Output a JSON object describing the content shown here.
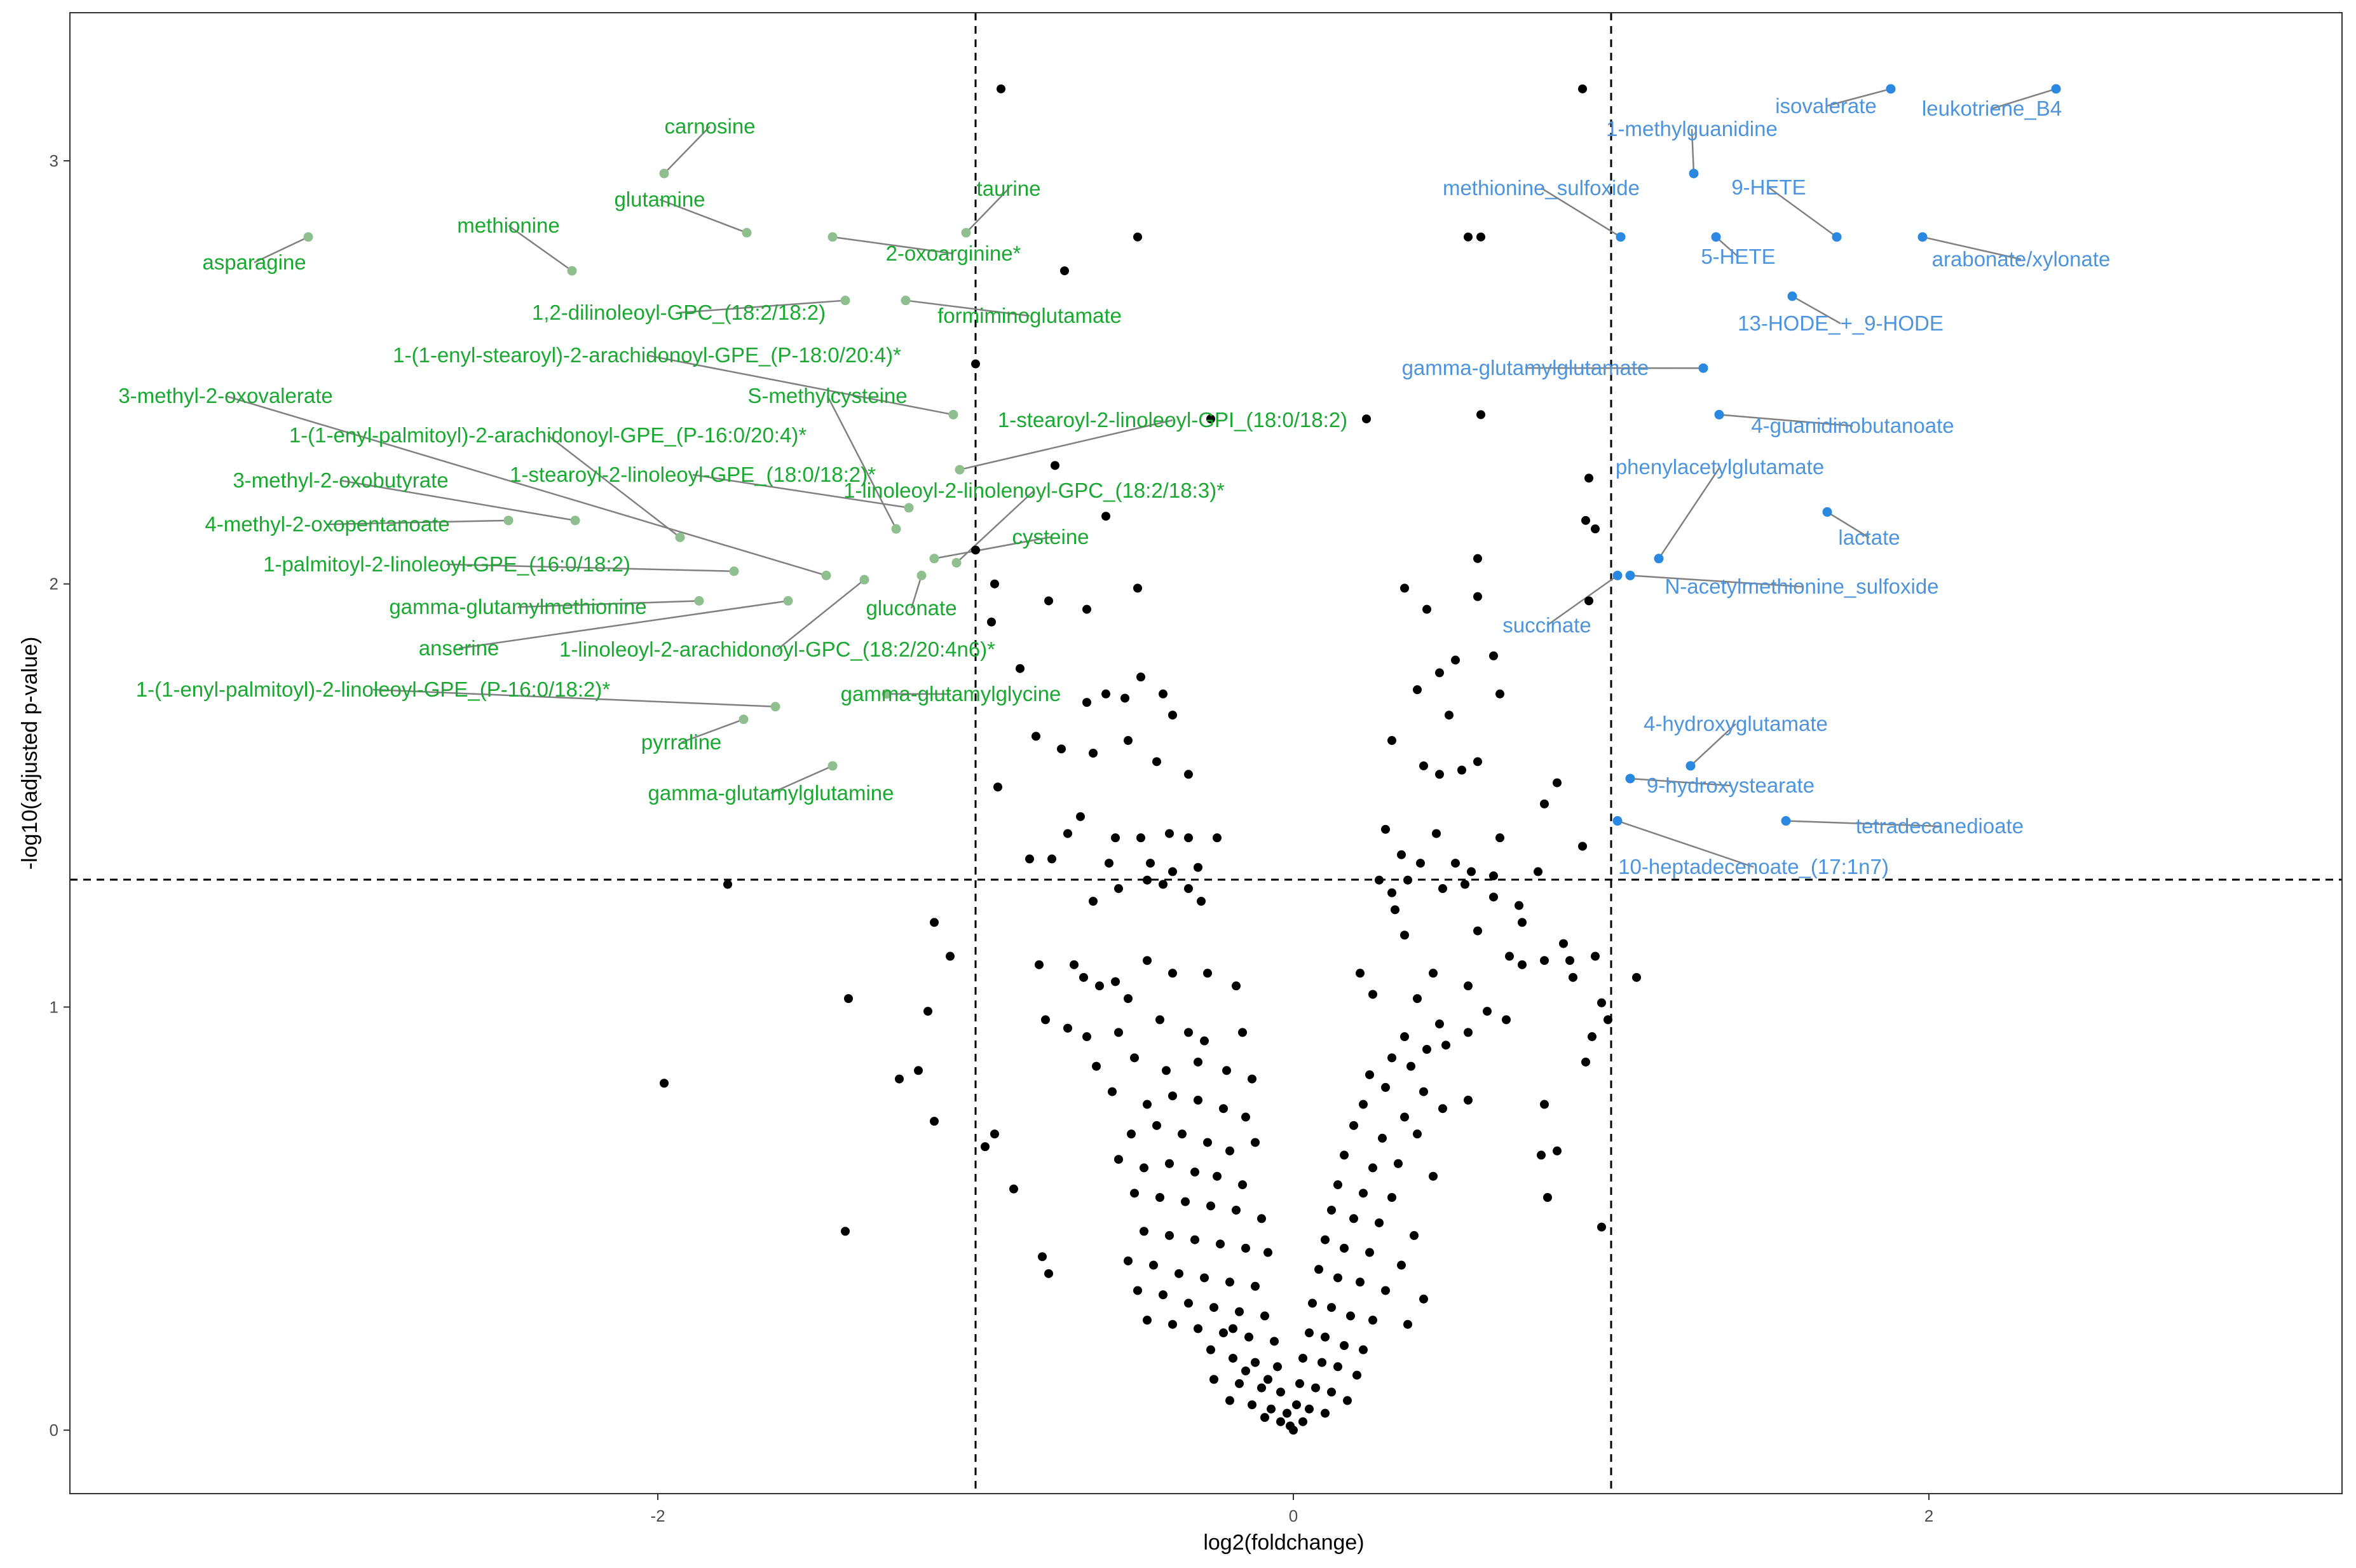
{
  "chart_data": {
    "type": "scatter",
    "xlabel": "log2(foldchange)",
    "ylabel": "-log10(adjusted p-value)",
    "xlim": [
      -3.85,
      3.3
    ],
    "ylim": [
      -0.15,
      3.35
    ],
    "x_ticks": [
      -2,
      0,
      2
    ],
    "y_ticks": [
      0,
      1,
      2,
      3
    ],
    "x_tick_labels": [
      "-2",
      "0",
      "2"
    ],
    "y_tick_labels": [
      "0",
      "1",
      "2",
      "3"
    ],
    "grid": false,
    "thresholds": {
      "x": [
        -1,
        1
      ],
      "y": 1.301
    },
    "colors": {
      "down": "#1aa832",
      "down_point": "#8fbf8f",
      "up": "#4d94dd",
      "up_point": "#2b88e0",
      "ns": "#000000"
    },
    "labeled_points": [
      {
        "name": "asparagine",
        "x": -3.1,
        "y": 2.82,
        "group": "down"
      },
      {
        "name": "carnosine",
        "x": -1.98,
        "y": 2.97,
        "group": "down"
      },
      {
        "name": "methionine",
        "x": -2.27,
        "y": 2.74,
        "group": "down"
      },
      {
        "name": "glutamine",
        "x": -1.72,
        "y": 2.83,
        "group": "down"
      },
      {
        "name": "taurine",
        "x": -1.03,
        "y": 2.83,
        "group": "down"
      },
      {
        "name": "2-oxoarginine*",
        "x": -1.45,
        "y": 2.82,
        "group": "down"
      },
      {
        "name": "1,2-dilinoleoyl-GPC_(18:2/18:2)",
        "x": -1.41,
        "y": 2.67,
        "group": "down"
      },
      {
        "name": "formiminoglutamate",
        "x": -1.22,
        "y": 2.67,
        "group": "down"
      },
      {
        "name": "1-(1-enyl-stearoyl)-2-arachidonoyl-GPE_(P-18:0/20:4)*",
        "x": -1.07,
        "y": 2.4,
        "group": "down"
      },
      {
        "name": "S-methylcysteine",
        "x": -1.25,
        "y": 2.13,
        "group": "down"
      },
      {
        "name": "3-methyl-2-oxovalerate",
        "x": -1.47,
        "y": 2.02,
        "group": "down"
      },
      {
        "name": "1-stearoyl-2-linoleoyl-GPI_(18:0/18:2)",
        "x": -1.05,
        "y": 2.27,
        "group": "down"
      },
      {
        "name": "1-(1-enyl-palmitoyl)-2-arachidonoyl-GPE_(P-16:0/20:4)*",
        "x": -1.93,
        "y": 2.11,
        "group": "down"
      },
      {
        "name": "1-stearoyl-2-linoleoyl-GPE_(18:0/18:2)*",
        "x": -1.21,
        "y": 2.18,
        "group": "down"
      },
      {
        "name": "3-methyl-2-oxobutyrate",
        "x": -2.26,
        "y": 2.15,
        "group": "down"
      },
      {
        "name": "1-linoleoyl-2-linolenoyl-GPC_(18:2/18:3)*",
        "x": -1.06,
        "y": 2.05,
        "group": "down"
      },
      {
        "name": "4-methyl-2-oxopentanoate",
        "x": -2.47,
        "y": 2.15,
        "group": "down"
      },
      {
        "name": "cysteine",
        "x": -1.13,
        "y": 2.06,
        "group": "down"
      },
      {
        "name": "1-palmitoyl-2-linoleoyl-GPE_(16:0/18:2)",
        "x": -1.76,
        "y": 2.03,
        "group": "down"
      },
      {
        "name": "gluconate",
        "x": -1.17,
        "y": 2.02,
        "group": "down"
      },
      {
        "name": "gamma-glutamylmethionine",
        "x": -1.87,
        "y": 1.96,
        "group": "down"
      },
      {
        "name": "anserine",
        "x": -1.59,
        "y": 1.96,
        "group": "down"
      },
      {
        "name": "1-linoleoyl-2-arachidonoyl-GPC_(18:2/20:4n6)*",
        "x": -1.35,
        "y": 2.01,
        "group": "down"
      },
      {
        "name": "1-(1-enyl-palmitoyl)-2-linoleoyl-GPE_(P-16:0/18:2)*",
        "x": -1.63,
        "y": 1.71,
        "group": "down"
      },
      {
        "name": "gamma-glutamylglycine",
        "x": -1.28,
        "y": 1.74,
        "group": "down"
      },
      {
        "name": "pyrraline",
        "x": -1.73,
        "y": 1.68,
        "group": "down"
      },
      {
        "name": "gamma-glutamylglutamine",
        "x": -1.45,
        "y": 1.57,
        "group": "down"
      },
      {
        "name": "isovalerate",
        "x": 1.88,
        "y": 3.17,
        "group": "up"
      },
      {
        "name": "leukotriene_B4",
        "x": 2.4,
        "y": 3.17,
        "group": "up"
      },
      {
        "name": "1-methylguanidine",
        "x": 1.26,
        "y": 2.97,
        "group": "up"
      },
      {
        "name": "methionine_sulfoxide",
        "x": 1.03,
        "y": 2.82,
        "group": "up"
      },
      {
        "name": "9-HETE",
        "x": 1.71,
        "y": 2.82,
        "group": "up"
      },
      {
        "name": "5-HETE",
        "x": 1.33,
        "y": 2.82,
        "group": "up"
      },
      {
        "name": "arabonate/xylonate",
        "x": 1.98,
        "y": 2.82,
        "group": "up"
      },
      {
        "name": "13-HODE_+_9-HODE",
        "x": 1.57,
        "y": 2.68,
        "group": "up"
      },
      {
        "name": "gamma-glutamylglutamate",
        "x": 1.29,
        "y": 2.51,
        "group": "up"
      },
      {
        "name": "4-guanidinobutanoate",
        "x": 1.34,
        "y": 2.4,
        "group": "up"
      },
      {
        "name": "phenylacetylglutamate",
        "x": 1.15,
        "y": 2.06,
        "group": "up"
      },
      {
        "name": "lactate",
        "x": 1.68,
        "y": 2.17,
        "group": "up"
      },
      {
        "name": "N-acetylmethionine_sulfoxide",
        "x": 1.06,
        "y": 2.02,
        "group": "up"
      },
      {
        "name": "succinate",
        "x": 1.02,
        "y": 2.02,
        "group": "up"
      },
      {
        "name": "4-hydroxyglutamate",
        "x": 1.25,
        "y": 1.57,
        "group": "up"
      },
      {
        "name": "9-hydroxystearate",
        "x": 1.06,
        "y": 1.54,
        "group": "up"
      },
      {
        "name": "tetradecanedioate",
        "x": 1.55,
        "y": 1.44,
        "group": "up"
      },
      {
        "name": "10-heptadecenoate_(17:1n7)",
        "x": 1.02,
        "y": 1.44,
        "group": "up"
      }
    ],
    "other_points": [
      [
        -0.92,
        3.17
      ],
      [
        -0.49,
        2.82
      ],
      [
        -0.72,
        2.74
      ],
      [
        -1.0,
        2.52
      ],
      [
        -0.26,
        2.39
      ],
      [
        -0.75,
        2.28
      ],
      [
        -0.59,
        2.16
      ],
      [
        -1.0,
        2.08
      ],
      [
        -0.94,
        2.0
      ],
      [
        -0.77,
        1.96
      ],
      [
        -0.65,
        1.94
      ],
      [
        -0.95,
        1.91
      ],
      [
        -0.49,
        1.99
      ],
      [
        -0.86,
        1.8
      ],
      [
        -0.48,
        1.78
      ],
      [
        -0.59,
        1.74
      ],
      [
        -0.53,
        1.73
      ],
      [
        -0.41,
        1.74
      ],
      [
        -0.65,
        1.72
      ],
      [
        -0.38,
        1.69
      ],
      [
        -0.81,
        1.64
      ],
      [
        -0.52,
        1.63
      ],
      [
        -0.63,
        1.6
      ],
      [
        -0.73,
        1.61
      ],
      [
        -0.43,
        1.58
      ],
      [
        -0.33,
        1.55
      ],
      [
        -0.93,
        1.52
      ],
      [
        -0.67,
        1.45
      ],
      [
        -0.71,
        1.41
      ],
      [
        -0.56,
        1.4
      ],
      [
        -0.48,
        1.4
      ],
      [
        -0.39,
        1.41
      ],
      [
        -0.33,
        1.4
      ],
      [
        -0.24,
        1.4
      ],
      [
        -0.83,
        1.35
      ],
      [
        -0.76,
        1.35
      ],
      [
        -0.58,
        1.34
      ],
      [
        -0.45,
        1.34
      ],
      [
        -0.38,
        1.32
      ],
      [
        -0.3,
        1.33
      ],
      [
        -0.55,
        1.28
      ],
      [
        -0.46,
        1.3
      ],
      [
        -0.41,
        1.29
      ],
      [
        -0.33,
        1.28
      ],
      [
        -0.63,
        1.25
      ],
      [
        -0.29,
        1.25
      ],
      [
        -1.78,
        1.29
      ],
      [
        -0.8,
        1.1
      ],
      [
        -0.69,
        1.1
      ],
      [
        -0.66,
        1.07
      ],
      [
        -0.61,
        1.05
      ],
      [
        -0.56,
        1.06
      ],
      [
        -0.52,
        1.02
      ],
      [
        -0.46,
        1.11
      ],
      [
        -0.38,
        1.08
      ],
      [
        -0.27,
        1.08
      ],
      [
        -0.18,
        1.05
      ],
      [
        -0.78,
        0.97
      ],
      [
        -0.71,
        0.95
      ],
      [
        -0.65,
        0.93
      ],
      [
        -0.55,
        0.94
      ],
      [
        -0.42,
        0.97
      ],
      [
        -0.33,
        0.94
      ],
      [
        -0.28,
        0.92
      ],
      [
        -0.16,
        0.94
      ],
      [
        -0.62,
        0.86
      ],
      [
        -0.5,
        0.88
      ],
      [
        -0.4,
        0.85
      ],
      [
        -0.3,
        0.87
      ],
      [
        -0.21,
        0.85
      ],
      [
        -0.13,
        0.83
      ],
      [
        -0.57,
        0.8
      ],
      [
        -0.46,
        0.77
      ],
      [
        -0.38,
        0.79
      ],
      [
        -0.3,
        0.78
      ],
      [
        -0.22,
        0.76
      ],
      [
        -0.15,
        0.74
      ],
      [
        -0.51,
        0.7
      ],
      [
        -0.43,
        0.72
      ],
      [
        -0.35,
        0.7
      ],
      [
        -0.27,
        0.68
      ],
      [
        -0.2,
        0.66
      ],
      [
        -0.12,
        0.68
      ],
      [
        -0.55,
        0.64
      ],
      [
        -0.47,
        0.62
      ],
      [
        -0.39,
        0.63
      ],
      [
        -0.31,
        0.61
      ],
      [
        -0.24,
        0.6
      ],
      [
        -0.16,
        0.58
      ],
      [
        -0.5,
        0.56
      ],
      [
        -0.42,
        0.55
      ],
      [
        -0.34,
        0.54
      ],
      [
        -0.26,
        0.53
      ],
      [
        -0.18,
        0.52
      ],
      [
        -0.1,
        0.5
      ],
      [
        -0.47,
        0.47
      ],
      [
        -0.39,
        0.46
      ],
      [
        -0.31,
        0.45
      ],
      [
        -0.23,
        0.44
      ],
      [
        -0.15,
        0.43
      ],
      [
        -0.08,
        0.42
      ],
      [
        -0.52,
        0.4
      ],
      [
        -0.44,
        0.39
      ],
      [
        -0.36,
        0.37
      ],
      [
        -0.28,
        0.36
      ],
      [
        -0.2,
        0.35
      ],
      [
        -0.12,
        0.34
      ],
      [
        -0.49,
        0.33
      ],
      [
        -0.41,
        0.32
      ],
      [
        -0.33,
        0.3
      ],
      [
        -0.25,
        0.29
      ],
      [
        -0.17,
        0.28
      ],
      [
        -0.09,
        0.27
      ],
      [
        -0.46,
        0.26
      ],
      [
        -0.38,
        0.25
      ],
      [
        -0.3,
        0.24
      ],
      [
        -0.22,
        0.23
      ],
      [
        -0.14,
        0.22
      ],
      [
        -0.06,
        0.21
      ],
      [
        -0.26,
        0.19
      ],
      [
        -0.19,
        0.17
      ],
      [
        -0.12,
        0.16
      ],
      [
        -0.05,
        0.15
      ],
      [
        -0.25,
        0.12
      ],
      [
        -0.17,
        0.11
      ],
      [
        -0.1,
        0.1
      ],
      [
        -0.04,
        0.09
      ],
      [
        -0.2,
        0.07
      ],
      [
        -0.13,
        0.06
      ],
      [
        -0.07,
        0.05
      ],
      [
        -0.02,
        0.04
      ],
      [
        -0.09,
        0.03
      ],
      [
        -0.04,
        0.02
      ],
      [
        -0.01,
        0.01
      ],
      [
        -0.15,
        0.14
      ],
      [
        -0.08,
        0.12
      ],
      [
        -0.19,
        0.24
      ],
      [
        -1.13,
        1.2
      ],
      [
        -1.08,
        1.12
      ],
      [
        -1.15,
        0.99
      ],
      [
        -1.18,
        0.85
      ],
      [
        -1.24,
        0.83
      ],
      [
        -1.13,
        0.73
      ],
      [
        -0.94,
        0.7
      ],
      [
        -0.97,
        0.67
      ],
      [
        -0.88,
        0.57
      ],
      [
        -0.79,
        0.41
      ],
      [
        -0.77,
        0.37
      ],
      [
        -1.4,
        1.02
      ],
      [
        -1.98,
        0.82
      ],
      [
        -1.41,
        0.47
      ],
      [
        0.91,
        3.17
      ],
      [
        0.55,
        2.82
      ],
      [
        0.59,
        2.82
      ],
      [
        0.23,
        2.39
      ],
      [
        0.59,
        2.4
      ],
      [
        0.93,
        2.25
      ],
      [
        0.92,
        2.15
      ],
      [
        0.95,
        2.13
      ],
      [
        0.58,
        2.06
      ],
      [
        0.35,
        1.99
      ],
      [
        0.58,
        1.97
      ],
      [
        0.93,
        1.96
      ],
      [
        0.42,
        1.94
      ],
      [
        0.63,
        1.83
      ],
      [
        0.51,
        1.82
      ],
      [
        0.46,
        1.79
      ],
      [
        0.65,
        1.74
      ],
      [
        0.39,
        1.75
      ],
      [
        0.49,
        1.69
      ],
      [
        0.31,
        1.63
      ],
      [
        0.58,
        1.58
      ],
      [
        0.41,
        1.57
      ],
      [
        0.46,
        1.55
      ],
      [
        0.53,
        1.56
      ],
      [
        0.83,
        1.53
      ],
      [
        0.79,
        1.48
      ],
      [
        0.29,
        1.42
      ],
      [
        0.45,
        1.41
      ],
      [
        0.65,
        1.4
      ],
      [
        0.91,
        1.38
      ],
      [
        0.34,
        1.36
      ],
      [
        0.4,
        1.34
      ],
      [
        0.51,
        1.34
      ],
      [
        0.56,
        1.32
      ],
      [
        0.27,
        1.3
      ],
      [
        0.36,
        1.3
      ],
      [
        0.54,
        1.29
      ],
      [
        0.63,
        1.31
      ],
      [
        0.77,
        1.32
      ],
      [
        0.31,
        1.27
      ],
      [
        0.47,
        1.28
      ],
      [
        0.63,
        1.26
      ],
      [
        0.71,
        1.24
      ],
      [
        0.32,
        1.23
      ],
      [
        0.58,
        1.18
      ],
      [
        0.72,
        1.2
      ],
      [
        0.85,
        1.15
      ],
      [
        0.95,
        1.12
      ],
      [
        0.35,
        1.17
      ],
      [
        0.68,
        1.12
      ],
      [
        0.79,
        1.11
      ],
      [
        0.72,
        1.1
      ],
      [
        0.88,
        1.07
      ],
      [
        1.08,
        1.07
      ],
      [
        0.21,
        1.08
      ],
      [
        0.44,
        1.08
      ],
      [
        0.55,
        1.05
      ],
      [
        0.25,
        1.03
      ],
      [
        0.39,
        1.02
      ],
      [
        0.61,
        0.99
      ],
      [
        0.46,
        0.96
      ],
      [
        0.55,
        0.94
      ],
      [
        0.67,
        0.97
      ],
      [
        0.35,
        0.93
      ],
      [
        0.42,
        0.9
      ],
      [
        0.48,
        0.91
      ],
      [
        0.31,
        0.88
      ],
      [
        0.37,
        0.86
      ],
      [
        0.24,
        0.84
      ],
      [
        0.29,
        0.81
      ],
      [
        0.41,
        0.8
      ],
      [
        0.55,
        0.78
      ],
      [
        0.22,
        0.77
      ],
      [
        0.35,
        0.74
      ],
      [
        0.47,
        0.76
      ],
      [
        0.19,
        0.72
      ],
      [
        0.28,
        0.69
      ],
      [
        0.39,
        0.7
      ],
      [
        0.16,
        0.65
      ],
      [
        0.25,
        0.62
      ],
      [
        0.33,
        0.63
      ],
      [
        0.44,
        0.6
      ],
      [
        0.14,
        0.58
      ],
      [
        0.22,
        0.56
      ],
      [
        0.31,
        0.55
      ],
      [
        0.12,
        0.52
      ],
      [
        0.19,
        0.5
      ],
      [
        0.27,
        0.49
      ],
      [
        0.38,
        0.46
      ],
      [
        0.1,
        0.45
      ],
      [
        0.16,
        0.43
      ],
      [
        0.24,
        0.42
      ],
      [
        0.34,
        0.39
      ],
      [
        0.08,
        0.38
      ],
      [
        0.14,
        0.36
      ],
      [
        0.21,
        0.35
      ],
      [
        0.29,
        0.33
      ],
      [
        0.41,
        0.31
      ],
      [
        0.06,
        0.3
      ],
      [
        0.12,
        0.29
      ],
      [
        0.18,
        0.27
      ],
      [
        0.25,
        0.26
      ],
      [
        0.36,
        0.25
      ],
      [
        0.05,
        0.23
      ],
      [
        0.1,
        0.22
      ],
      [
        0.16,
        0.2
      ],
      [
        0.22,
        0.19
      ],
      [
        0.03,
        0.17
      ],
      [
        0.09,
        0.16
      ],
      [
        0.14,
        0.15
      ],
      [
        0.2,
        0.13
      ],
      [
        0.02,
        0.11
      ],
      [
        0.07,
        0.1
      ],
      [
        0.12,
        0.09
      ],
      [
        0.17,
        0.07
      ],
      [
        0.01,
        0.06
      ],
      [
        0.05,
        0.05
      ],
      [
        0.1,
        0.04
      ],
      [
        0.03,
        0.02
      ],
      [
        0.0,
        0.0
      ],
      [
        0.8,
        0.55
      ],
      [
        0.78,
        0.65
      ],
      [
        0.83,
        0.66
      ],
      [
        0.97,
        0.48
      ],
      [
        0.92,
        0.87
      ],
      [
        0.94,
        0.93
      ],
      [
        0.87,
        1.11
      ],
      [
        0.97,
        1.01
      ],
      [
        0.99,
        0.97
      ],
      [
        0.79,
        0.77
      ]
    ]
  }
}
